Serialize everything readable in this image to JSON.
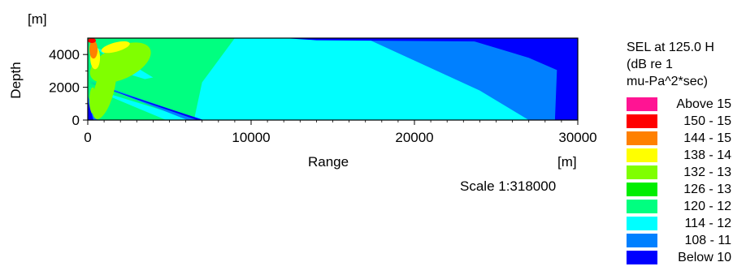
{
  "chart_data": {
    "type": "heatmap",
    "title": "",
    "xlabel": "Range",
    "xunit": "[m]",
    "ylabel": "Depth",
    "yunit": "[m]",
    "xlim": [
      0,
      30000
    ],
    "ylim": [
      0,
      5000
    ],
    "x_ticks": [
      0,
      10000,
      20000,
      30000
    ],
    "y_ticks": [
      0,
      2000,
      4000
    ],
    "x_tick_labels": [
      "0",
      "10000",
      "20000",
      "30000"
    ],
    "y_tick_labels": [
      "0",
      "2000",
      "4000"
    ],
    "scale_text": "Scale 1:318000",
    "legend_placement": "right",
    "legend_title": [
      "SEL at 125.0 H",
      "(dB re 1",
      "mu-Pa^2*sec)"
    ],
    "legend": [
      {
        "label": "Above 15",
        "color": "#ff1493"
      },
      {
        "label": "150 - 15",
        "color": "#ff0000"
      },
      {
        "label": "144 - 15",
        "color": "#ff8000"
      },
      {
        "label": "138 - 14",
        "color": "#ffff00"
      },
      {
        "label": "132 - 13",
        "color": "#80ff00"
      },
      {
        "label": "126 - 13",
        "color": "#00ee00"
      },
      {
        "label": "120 - 12",
        "color": "#00ff80"
      },
      {
        "label": "114 - 12",
        "color": "#00ffff"
      },
      {
        "label": "108 - 11",
        "color": "#0080ff"
      },
      {
        "label": "Below 10",
        "color": "#0000ff"
      }
    ],
    "regions": [
      {
        "band": "114 - 12",
        "polygon": [
          [
            9000,
            5000
          ],
          [
            30000,
            5000
          ],
          [
            30000,
            0
          ],
          [
            6500,
            0
          ],
          [
            7000,
            2300
          ]
        ]
      },
      {
        "band": "108 - 11",
        "polygon": [
          [
            17000,
            5000
          ],
          [
            30000,
            5000
          ],
          [
            30000,
            0
          ],
          [
            27000,
            0
          ],
          [
            24000,
            1800
          ]
        ]
      },
      {
        "band": "Below 10",
        "polygon": [
          [
            23000,
            5000
          ],
          [
            30000,
            5000
          ],
          [
            30000,
            2500
          ],
          [
            27000,
            3800
          ]
        ]
      },
      {
        "band": "Below 10",
        "polygon": [
          [
            28800,
            5000
          ],
          [
            30000,
            5000
          ],
          [
            30000,
            0
          ],
          [
            28600,
            0
          ]
        ]
      },
      {
        "band": "Below 10",
        "polygon": [
          [
            12000,
            5000
          ],
          [
            30000,
            5000
          ],
          [
            30000,
            4750
          ],
          [
            14000,
            4870
          ]
        ]
      },
      {
        "band": "114 - 12",
        "polygon": [
          [
            0,
            2000
          ],
          [
            6500,
            0
          ],
          [
            4800,
            0
          ]
        ]
      },
      {
        "band": "108 - 11",
        "polygon": [
          [
            0,
            2400
          ],
          [
            7000,
            0
          ],
          [
            6100,
            0
          ]
        ]
      },
      {
        "band": "Below 10",
        "polygon": [
          [
            0,
            2300
          ],
          [
            7100,
            0
          ],
          [
            6700,
            0
          ]
        ]
      },
      {
        "band": "108 - 11",
        "polygon": [
          [
            0,
            1500
          ],
          [
            600,
            0
          ],
          [
            0,
            0
          ]
        ]
      },
      {
        "band": "Below 10",
        "polygon": [
          [
            0,
            1200
          ],
          [
            350,
            0
          ],
          [
            0,
            0
          ]
        ]
      },
      {
        "band": "114 - 12",
        "polygon": [
          [
            500,
            4400
          ],
          [
            2500,
            2800
          ],
          [
            3500,
            2500
          ],
          [
            4000,
            2600
          ],
          [
            3000,
            3200
          ],
          [
            1200,
            4200
          ]
        ]
      },
      {
        "band": "132 - 13",
        "ellipse": {
          "cx": 2000,
          "cy": 3500,
          "rx": 2000,
          "ry": 1000,
          "angle": 25
        }
      },
      {
        "band": "132 - 13",
        "ellipse": {
          "cx": 1000,
          "cy": 1800,
          "rx": 600,
          "ry": 1800,
          "angle": -15
        }
      },
      {
        "band": "132 - 13",
        "ellipse": {
          "cx": 300,
          "cy": 1200,
          "rx": 200,
          "ry": 800,
          "angle": 0
        }
      },
      {
        "band": "138 - 14",
        "ellipse": {
          "cx": 1700,
          "cy": 4450,
          "rx": 900,
          "ry": 280,
          "angle": 15
        }
      },
      {
        "band": "138 - 14",
        "ellipse": {
          "cx": 450,
          "cy": 3800,
          "rx": 300,
          "ry": 700,
          "angle": 0
        }
      },
      {
        "band": "144 - 15",
        "ellipse": {
          "cx": 350,
          "cy": 4300,
          "rx": 250,
          "ry": 550,
          "angle": 0
        }
      },
      {
        "band": "150 - 15",
        "ellipse": {
          "cx": 250,
          "cy": 4850,
          "rx": 250,
          "ry": 150,
          "angle": 0
        }
      }
    ]
  }
}
